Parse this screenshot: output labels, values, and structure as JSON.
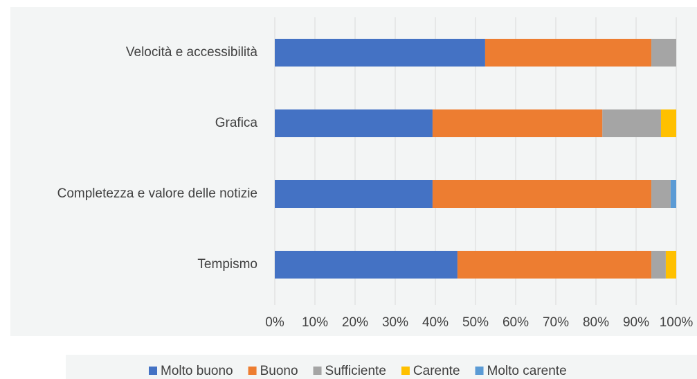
{
  "chart_data": {
    "type": "bar",
    "orientation": "horizontal",
    "stacked": true,
    "categories": [
      "Velocità e accessibilità",
      "Grafica",
      "Completezza e valore delle notizie",
      "Tempismo"
    ],
    "series": [
      {
        "name": "Molto buono",
        "color": "#4472c4",
        "values": [
          52.4,
          39.3,
          39.3,
          45.5
        ]
      },
      {
        "name": "Buono",
        "color": "#ed7d31",
        "values": [
          41.4,
          42.3,
          54.5,
          48.3
        ]
      },
      {
        "name": "Sufficiente",
        "color": "#a5a5a5",
        "values": [
          6.2,
          14.6,
          4.8,
          3.6
        ]
      },
      {
        "name": "Carente",
        "color": "#ffc000",
        "values": [
          0,
          3.8,
          0,
          2.6
        ]
      },
      {
        "name": "Molto carente",
        "color": "#5b9bd5",
        "values": [
          0,
          0,
          1.4,
          0
        ]
      }
    ],
    "xlim": [
      0,
      100
    ],
    "xticks": [
      {
        "value": 0,
        "label": "0%"
      },
      {
        "value": 10,
        "label": "10%"
      },
      {
        "value": 20,
        "label": "20%"
      },
      {
        "value": 30,
        "label": "30%"
      },
      {
        "value": 40,
        "label": "40%"
      },
      {
        "value": 50,
        "label": "50%"
      },
      {
        "value": 60,
        "label": "60%"
      },
      {
        "value": 70,
        "label": "70%"
      },
      {
        "value": 80,
        "label": "80%"
      },
      {
        "value": 90,
        "label": "90%"
      },
      {
        "value": 100,
        "label": "100%"
      }
    ],
    "grid": true,
    "legend": "bottom"
  }
}
